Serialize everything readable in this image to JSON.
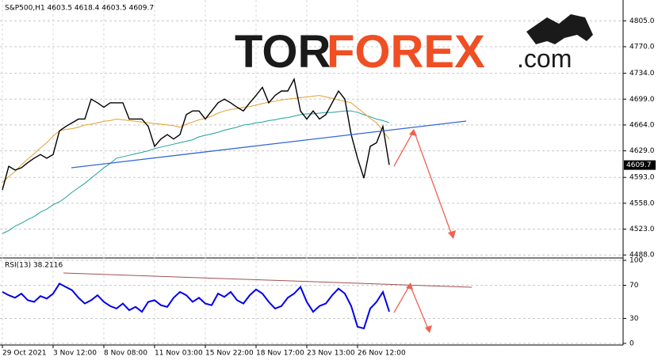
{
  "chart_data": [
    {
      "type": "line",
      "title": "S&P500,H1  4603.5 4618.4 4603.5 4609.7",
      "logo": {
        "part1": "TOR",
        "part2": "FOREX",
        "part3": ".com"
      },
      "categories": [
        "29 Oct 2021",
        null,
        null,
        null,
        null,
        null,
        null,
        null,
        "3 Nov 12:00",
        null,
        null,
        null,
        null,
        null,
        null,
        null,
        "8 Nov 08:00",
        null,
        null,
        null,
        null,
        null,
        null,
        null,
        "11 Nov 03:00",
        null,
        null,
        null,
        null,
        null,
        null,
        null,
        "15 Nov 22:00",
        null,
        null,
        null,
        null,
        null,
        null,
        null,
        "18 Nov 17:00",
        null,
        null,
        null,
        null,
        null,
        null,
        null,
        "23 Nov 13:00",
        null,
        null,
        null,
        null,
        null,
        null,
        null,
        "26 Nov 12:00",
        null,
        null,
        null,
        null,
        null
      ],
      "series": [
        {
          "color": "#000000",
          "values": [
            4576,
            4608,
            4603,
            4606,
            4613,
            4619,
            4624,
            4619,
            4624,
            4656,
            4662,
            4667,
            4672,
            4672,
            4699,
            4694,
            4688,
            4694,
            4694,
            4694,
            4672,
            4672,
            4672,
            4662,
            4635,
            4645,
            4651,
            4645,
            4651,
            4678,
            4683,
            4683,
            4672,
            4683,
            4694,
            4699,
            4694,
            4688,
            4683,
            4694,
            4704,
            4715,
            4694,
            4704,
            4710,
            4710,
            4726,
            4683,
            4672,
            4683,
            4672,
            4678,
            4694,
            4710,
            4699,
            4651,
            4619,
            4592,
            4635,
            4640,
            4662,
            4610
          ]
        },
        {
          "color": "#e0a030",
          "values": [
            4586,
            4594,
            4601,
            4610,
            4618,
            4625,
            4633,
            4640,
            4649,
            4656,
            4658,
            4659,
            4661,
            4664,
            4665,
            4667,
            4669,
            4670,
            4672,
            4671,
            4670,
            4669,
            4668,
            4667,
            4666,
            4665,
            4664,
            4663,
            4661,
            4665,
            4668,
            4671,
            4673,
            4676,
            4680,
            4683,
            4685,
            4686,
            4688,
            4689,
            4691,
            4693,
            4695,
            4696,
            4698,
            4699,
            4700,
            4701,
            4702,
            4703,
            4704,
            4702,
            4700,
            4698,
            4696,
            4694,
            4687,
            4680,
            4673,
            4667,
            4656,
            4645
          ]
        },
        {
          "color": "#20a0a0",
          "values": [
            4517,
            4521,
            4527,
            4531,
            4536,
            4540,
            4546,
            4550,
            4556,
            4560,
            4566,
            4573,
            4579,
            4585,
            4592,
            4599,
            4606,
            4612,
            4619,
            4621,
            4623,
            4625,
            4627,
            4629,
            4632,
            4634,
            4636,
            4638,
            4640,
            4642,
            4644,
            4648,
            4650,
            4652,
            4654,
            4657,
            4659,
            4661,
            4664,
            4665,
            4667,
            4668,
            4670,
            4671,
            4673,
            4674,
            4676,
            4678,
            4679,
            4679,
            4680,
            4681,
            4681,
            4682,
            4683,
            4683,
            4681,
            4678,
            4675,
            4672,
            4670,
            4667
          ]
        }
      ],
      "current_price": 4609.7,
      "ylim": [
        4485,
        4830
      ],
      "yticks": [
        {
          "value": 4805,
          "label": "4805.0"
        },
        {
          "value": 4770,
          "label": "4770.0"
        },
        {
          "value": 4734,
          "label": "4734.0"
        },
        {
          "value": 4699,
          "label": "4699.0"
        },
        {
          "value": 4664,
          "label": "4664.0"
        },
        {
          "value": 4629,
          "label": "4629.0"
        },
        {
          "value": 4593,
          "label": "4593.0"
        },
        {
          "value": 4558,
          "label": "4558.0"
        },
        {
          "value": 4523,
          "label": "4523.0"
        },
        {
          "value": 4488,
          "label": "4488.0"
        }
      ],
      "grid": true
    },
    {
      "type": "line",
      "title": "RSI(13) 38.2116",
      "series": [
        {
          "color": "#0000ee",
          "values": [
            62,
            58,
            55,
            60,
            52,
            50,
            57,
            54,
            60,
            72,
            68,
            64,
            55,
            48,
            52,
            58,
            50,
            45,
            42,
            48,
            40,
            44,
            38,
            50,
            52,
            46,
            44,
            55,
            62,
            58,
            50,
            55,
            48,
            46,
            60,
            56,
            62,
            52,
            48,
            58,
            65,
            60,
            50,
            42,
            45,
            55,
            60,
            68,
            50,
            38,
            45,
            48,
            58,
            66,
            60,
            45,
            20,
            18,
            42,
            50,
            62,
            38.2116
          ]
        }
      ],
      "ylim": [
        -1,
        101
      ],
      "yticks": [
        100,
        70,
        30,
        0
      ],
      "grid": true
    }
  ]
}
